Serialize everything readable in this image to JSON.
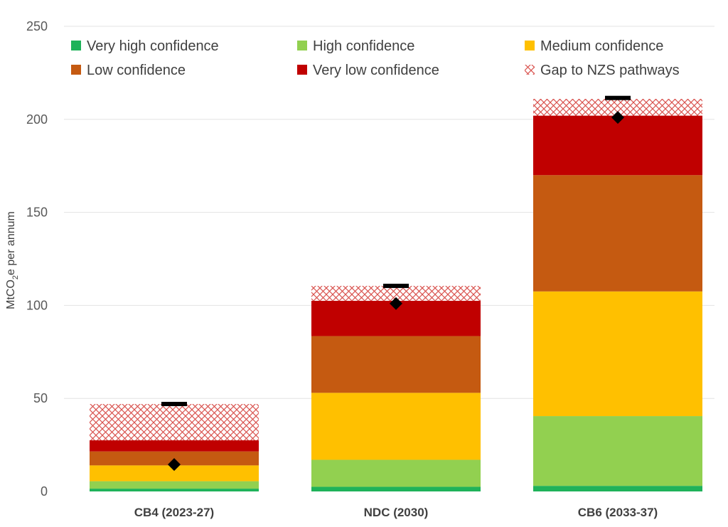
{
  "chart_data": {
    "type": "bar",
    "stacked": true,
    "title": "",
    "xlabel": "",
    "ylabel": "MtCO2e per annum",
    "ylim": [
      0,
      250
    ],
    "yticks": [
      0,
      50,
      100,
      150,
      200,
      250
    ],
    "grid": true,
    "legend_position": "top",
    "categories": [
      "CB4 (2023-27)",
      "NDC (2030)",
      "CB6 (2033-37)"
    ],
    "series": [
      {
        "name": "Very high confidence",
        "color": "#1fb25a",
        "pattern": "solid",
        "values": [
          1.5,
          2.5,
          3
        ]
      },
      {
        "name": "High confidence",
        "color": "#92d050",
        "pattern": "solid",
        "values": [
          4,
          14.5,
          37.5
        ]
      },
      {
        "name": "Medium confidence",
        "color": "#ffc000",
        "pattern": "solid",
        "values": [
          8.5,
          36,
          67
        ]
      },
      {
        "name": "Low confidence",
        "color": "#c55a11",
        "pattern": "solid",
        "values": [
          7.5,
          30.5,
          62.5
        ]
      },
      {
        "name": "Very low confidence",
        "color": "#c00000",
        "pattern": "solid",
        "values": [
          6,
          19,
          32
        ]
      },
      {
        "name": "Gap to NZS pathways",
        "color": "#d9534f",
        "pattern": "crosshatch",
        "values": [
          19.5,
          8,
          9
        ]
      }
    ],
    "markers": {
      "target_dash": [
        47,
        110.5,
        211.5
      ],
      "diamond": [
        14.5,
        101,
        201
      ]
    }
  }
}
